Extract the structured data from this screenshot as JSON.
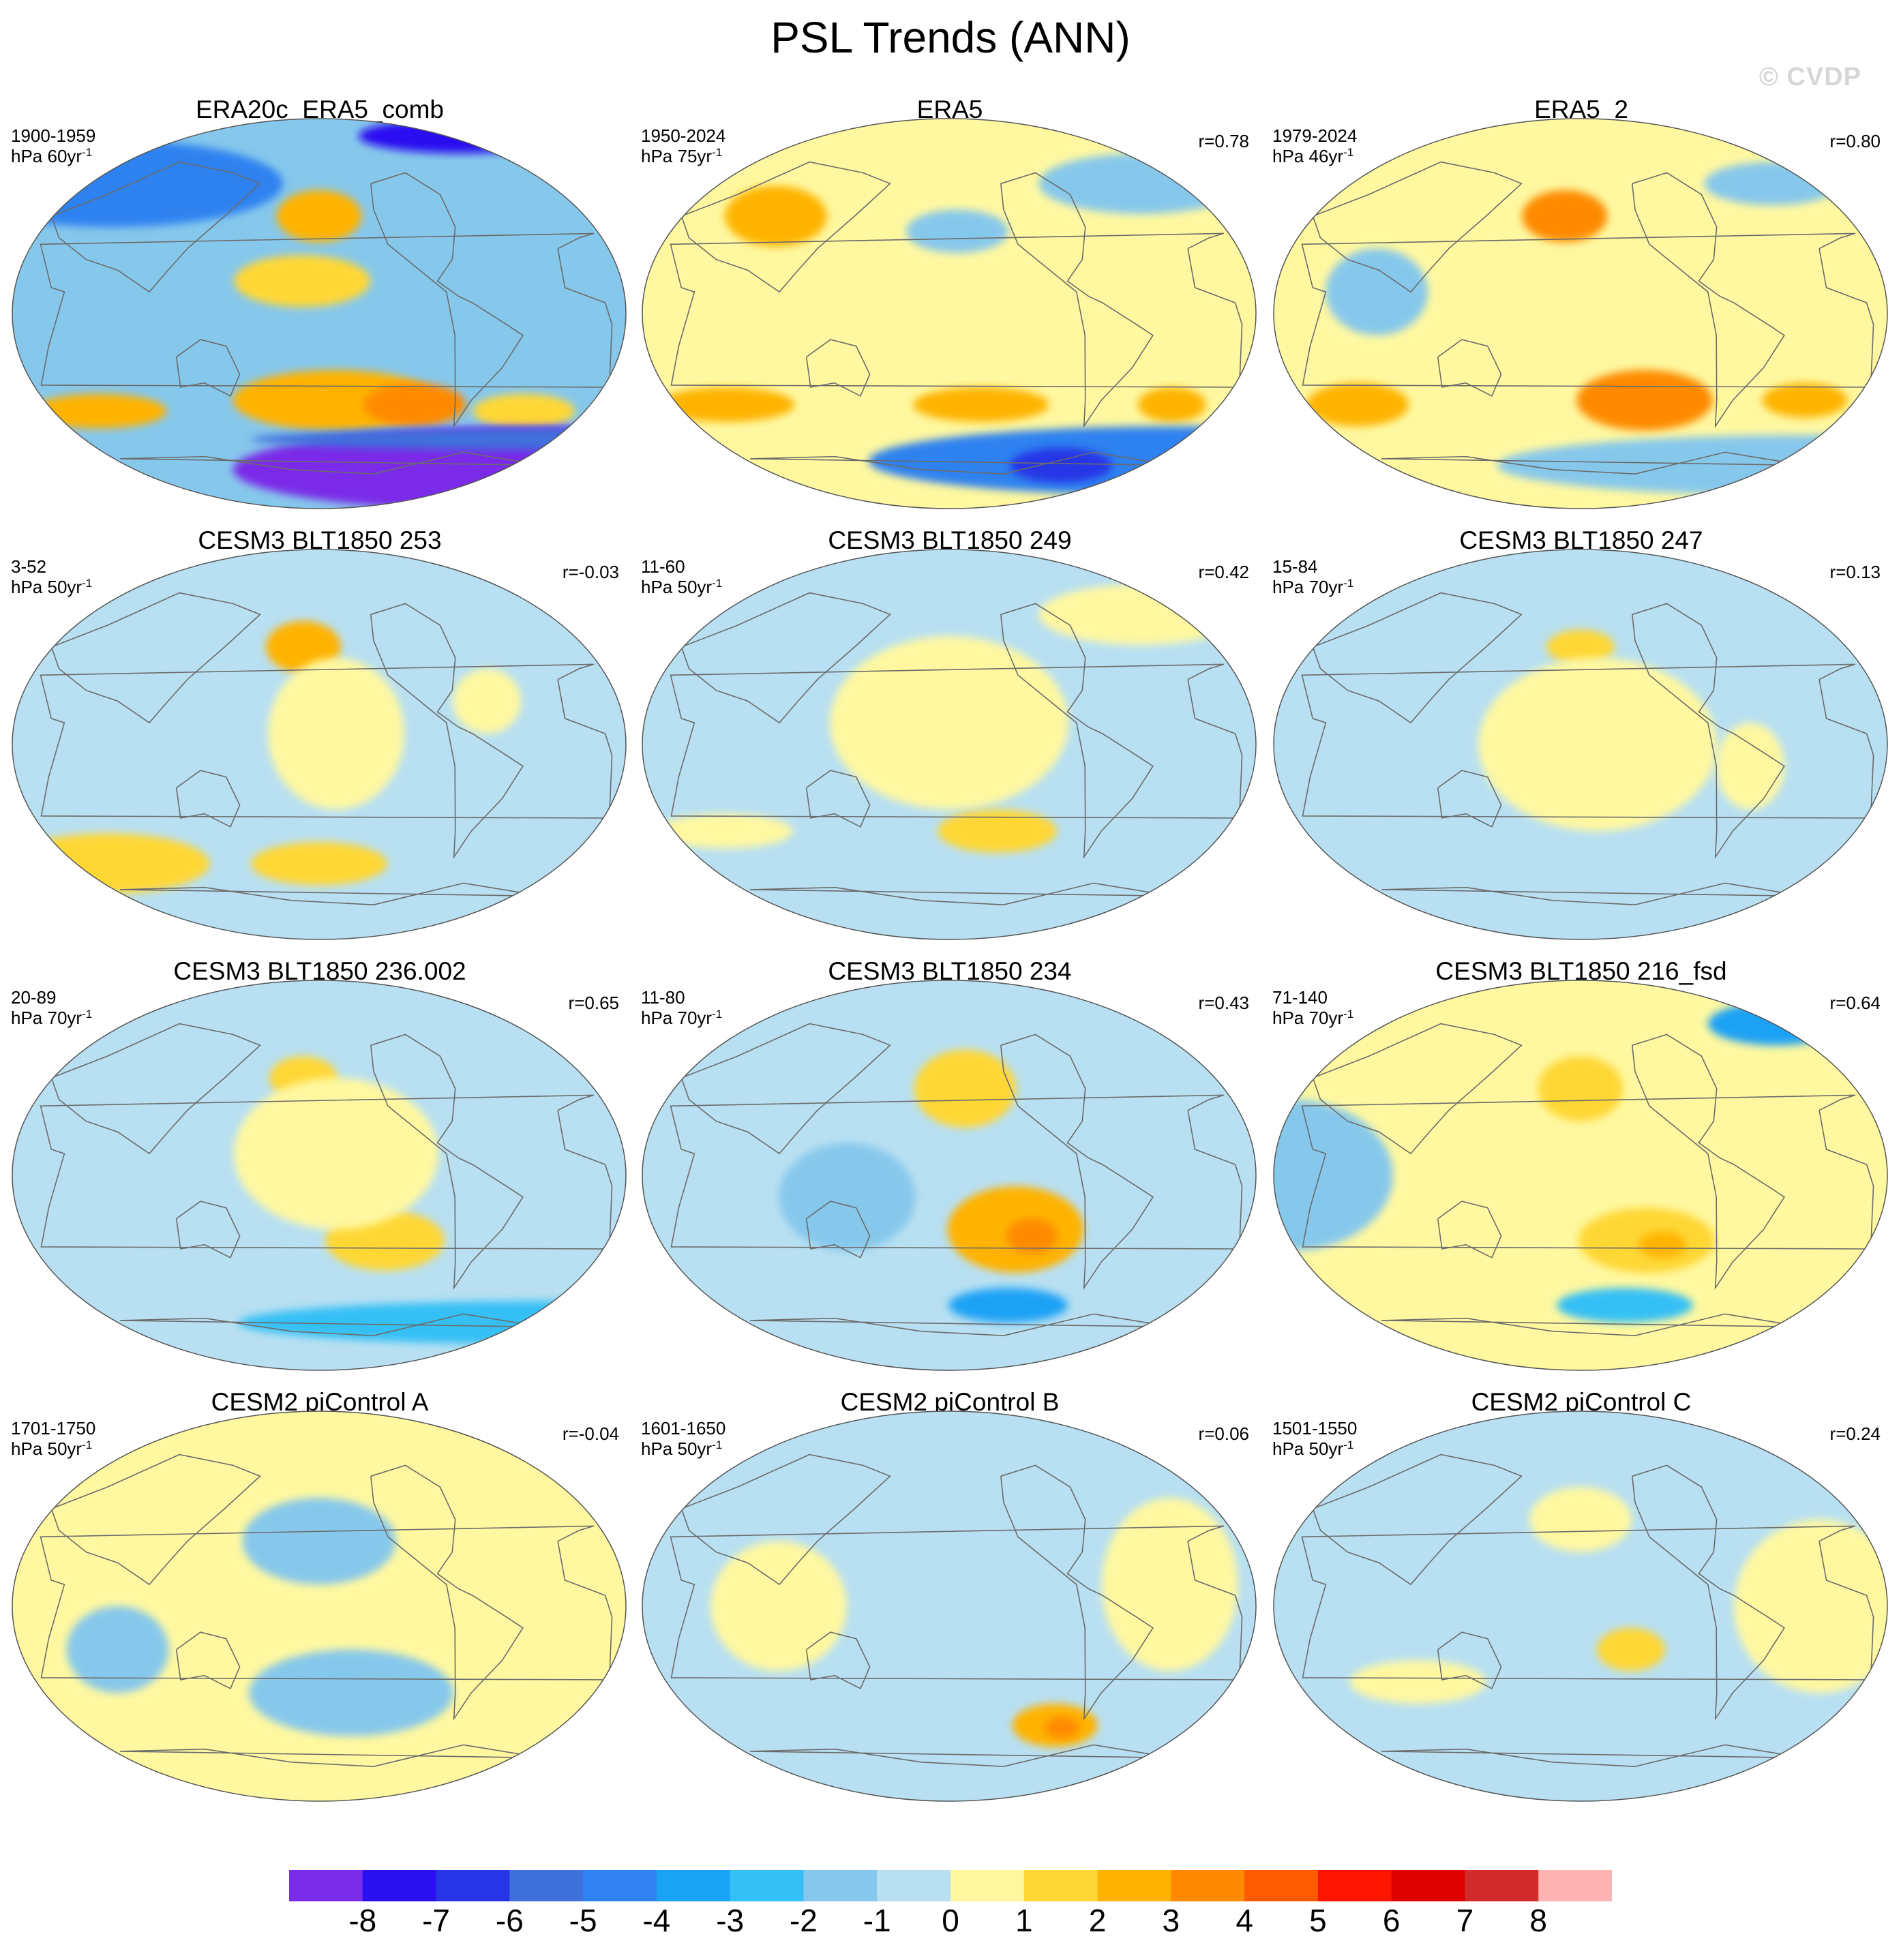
{
  "title": "PSL Trends (ANN)",
  "watermark": "© CVDP",
  "colorbar": {
    "colors": [
      "#7a2ce8",
      "#2a10f0",
      "#2636e6",
      "#3f70dc",
      "#2f82f0",
      "#1aa2f5",
      "#34c0f5",
      "#86c8ec",
      "#b8e0f2",
      "#fff8a0",
      "#ffd736",
      "#ffb300",
      "#ff8a00",
      "#ff5a00",
      "#ff1400",
      "#de0000",
      "#d22b2b",
      "#ffb3b3"
    ],
    "labels": [
      "-8",
      "-7",
      "-6",
      "-5",
      "-4",
      "-3",
      "-2",
      "-1",
      "0",
      "1",
      "2",
      "3",
      "4",
      "5",
      "6",
      "7",
      "8"
    ]
  },
  "panels": [
    {
      "title": "ERA20c_ERA5_comb",
      "period": "1900-1959",
      "units": "hPa 60yr",
      "units_exp": "-1",
      "corr": "",
      "base": "#86c8ec",
      "blobs": [
        {
          "lon": -150,
          "lat": -40,
          "rx": 60,
          "ry": 14,
          "level": 2
        },
        {
          "lon": -100,
          "lat": -42,
          "rx": 30,
          "ry": 10,
          "level": 3
        },
        {
          "lon": -160,
          "lat": 45,
          "rx": 25,
          "ry": 12,
          "level": 2
        },
        {
          "lon": -170,
          "lat": 15,
          "rx": 40,
          "ry": 12,
          "level": 1
        },
        {
          "lon": 60,
          "lat": -45,
          "rx": 40,
          "ry": 8,
          "level": 2
        },
        {
          "lon": -30,
          "lat": -45,
          "rx": 30,
          "ry": 8,
          "level": 1
        },
        {
          "lon": 0,
          "lat": -72,
          "rx": 180,
          "ry": 20,
          "level": -8
        },
        {
          "lon": 0,
          "lat": -58,
          "rx": 180,
          "ry": 5,
          "level": -5
        },
        {
          "lon": 60,
          "lat": 60,
          "rx": 100,
          "ry": 20,
          "level": -4
        },
        {
          "lon": -50,
          "lat": 82,
          "rx": 60,
          "ry": 8,
          "level": -7
        }
      ]
    },
    {
      "title": "ERA5",
      "period": "1950-2024",
      "units": "hPa 75yr",
      "units_exp": "-1",
      "corr": "r=0.78",
      "base": "#fff8a0",
      "blobs": [
        {
          "lon": 90,
          "lat": 45,
          "rx": 30,
          "ry": 14,
          "level": 2
        },
        {
          "lon": -155,
          "lat": 38,
          "rx": 30,
          "ry": 10,
          "level": -1
        },
        {
          "lon": -30,
          "lat": 60,
          "rx": 60,
          "ry": 14,
          "level": -1
        },
        {
          "lon": 60,
          "lat": -42,
          "rx": 40,
          "ry": 8,
          "level": 2
        },
        {
          "lon": -140,
          "lat": -42,
          "rx": 40,
          "ry": 8,
          "level": 2
        },
        {
          "lon": -20,
          "lat": -42,
          "rx": 20,
          "ry": 8,
          "level": 2
        },
        {
          "lon": 0,
          "lat": -68,
          "rx": 180,
          "ry": 16,
          "level": -4
        },
        {
          "lon": -80,
          "lat": -70,
          "rx": 30,
          "ry": 8,
          "level": -6
        }
      ]
    },
    {
      "title": "ERA5_2",
      "period": "1979-2024",
      "units": "hPa 46yr",
      "units_exp": "-1",
      "corr": "r=0.80",
      "base": "#fff8a0",
      "blobs": [
        {
          "lon": -170,
          "lat": 45,
          "rx": 25,
          "ry": 12,
          "level": 3
        },
        {
          "lon": -120,
          "lat": -40,
          "rx": 40,
          "ry": 14,
          "level": 3
        },
        {
          "lon": 60,
          "lat": -42,
          "rx": 30,
          "ry": 10,
          "level": 2
        },
        {
          "lon": -20,
          "lat": -40,
          "rx": 25,
          "ry": 8,
          "level": 2
        },
        {
          "lon": 0,
          "lat": -70,
          "rx": 180,
          "ry": 14,
          "level": -1
        },
        {
          "lon": -30,
          "lat": 60,
          "rx": 40,
          "ry": 10,
          "level": -1
        },
        {
          "lon": 80,
          "lat": 10,
          "rx": 30,
          "ry": 20,
          "level": -1
        }
      ]
    },
    {
      "title": "CESM3 BLT1850 253",
      "period": "3-52",
      "units": "hPa 50yr",
      "units_exp": "-1",
      "corr": "r=-0.03",
      "base": "#b8e0f2",
      "blobs": [
        {
          "lon": -170,
          "lat": 45,
          "rx": 22,
          "ry": 12,
          "level": 2
        },
        {
          "lon": -150,
          "lat": 5,
          "rx": 40,
          "ry": 35,
          "level": 0
        },
        {
          "lon": 60,
          "lat": -55,
          "rx": 60,
          "ry": 14,
          "level": 1
        },
        {
          "lon": -160,
          "lat": -55,
          "rx": 40,
          "ry": 10,
          "level": 1
        },
        {
          "lon": -60,
          "lat": 20,
          "rx": 20,
          "ry": 15,
          "level": 0
        }
      ]
    },
    {
      "title": "CESM3 BLT1850 249",
      "period": "11-60",
      "units": "hPa 50yr",
      "units_exp": "-1",
      "corr": "r=0.42",
      "base": "#b8e0f2",
      "blobs": [
        {
          "lon": -160,
          "lat": 10,
          "rx": 70,
          "ry": 40,
          "level": 0
        },
        {
          "lon": -130,
          "lat": -40,
          "rx": 35,
          "ry": 10,
          "level": 1
        },
        {
          "lon": -30,
          "lat": 60,
          "rx": 60,
          "ry": 14,
          "level": 0
        },
        {
          "lon": 60,
          "lat": -40,
          "rx": 40,
          "ry": 8,
          "level": 0
        }
      ]
    },
    {
      "title": "CESM3 BLT1850 247",
      "period": "15-84",
      "units": "hPa 70yr",
      "units_exp": "-1",
      "corr": "r=0.13",
      "base": "#b8e0f2",
      "blobs": [
        {
          "lon": -160,
          "lat": 45,
          "rx": 20,
          "ry": 8,
          "level": 1
        },
        {
          "lon": -150,
          "lat": 0,
          "rx": 70,
          "ry": 40,
          "level": 0
        },
        {
          "lon": -60,
          "lat": -10,
          "rx": 20,
          "ry": 20,
          "level": 0
        }
      ]
    },
    {
      "title": "CESM3 BLT1850 236.002",
      "period": "20-89",
      "units": "hPa 70yr",
      "units_exp": "-1",
      "corr": "r=0.65",
      "base": "#b8e0f2",
      "blobs": [
        {
          "lon": -170,
          "lat": 45,
          "rx": 20,
          "ry": 10,
          "level": 1
        },
        {
          "lon": -120,
          "lat": -30,
          "rx": 35,
          "ry": 14,
          "level": 1
        },
        {
          "lon": -150,
          "lat": 10,
          "rx": 60,
          "ry": 35,
          "level": 0
        },
        {
          "lon": 0,
          "lat": -68,
          "rx": 180,
          "ry": 10,
          "level": -2
        }
      ]
    },
    {
      "title": "CESM3 BLT1850 234",
      "period": "11-80",
      "units": "hPa 70yr",
      "units_exp": "-1",
      "corr": "r=0.43",
      "base": "#b8e0f2",
      "blobs": [
        {
          "lon": -150,
          "lat": 40,
          "rx": 30,
          "ry": 18,
          "level": 1
        },
        {
          "lon": -120,
          "lat": -25,
          "rx": 40,
          "ry": 20,
          "level": 2
        },
        {
          "lon": -110,
          "lat": -28,
          "rx": 15,
          "ry": 8,
          "level": 3
        },
        {
          "lon": -120,
          "lat": -60,
          "rx": 35,
          "ry": 8,
          "level": -3
        },
        {
          "lon": 140,
          "lat": -10,
          "rx": 40,
          "ry": 25,
          "level": -1
        }
      ]
    },
    {
      "title": "CESM3 BLT1850 216_fsd",
      "period": "71-140",
      "units": "hPa 70yr",
      "units_exp": "-1",
      "corr": "r=0.64",
      "base": "#fff8a0",
      "blobs": [
        {
          "lon": -160,
          "lat": 40,
          "rx": 25,
          "ry": 15,
          "level": 1
        },
        {
          "lon": -120,
          "lat": -30,
          "rx": 40,
          "ry": 15,
          "level": 1
        },
        {
          "lon": -110,
          "lat": -32,
          "rx": 14,
          "ry": 6,
          "level": 2
        },
        {
          "lon": -130,
          "lat": -60,
          "rx": 40,
          "ry": 8,
          "level": -2
        },
        {
          "lon": -20,
          "lat": 70,
          "rx": 40,
          "ry": 10,
          "level": -3
        },
        {
          "lon": 30,
          "lat": 0,
          "rx": 60,
          "ry": 35,
          "level": -1
        }
      ]
    },
    {
      "title": "CESM2 piControl A",
      "period": "1701-1750",
      "units": "hPa 50yr",
      "units_exp": "-1",
      "corr": "r=-0.04",
      "base": "#fff8a0",
      "blobs": [
        {
          "lon": -160,
          "lat": 30,
          "rx": 45,
          "ry": 20,
          "level": -1
        },
        {
          "lon": -140,
          "lat": -40,
          "rx": 60,
          "ry": 20,
          "level": -1
        },
        {
          "lon": 80,
          "lat": -20,
          "rx": 30,
          "ry": 20,
          "level": -1
        }
      ]
    },
    {
      "title": "CESM2 piControl B",
      "period": "1601-1650",
      "units": "hPa 50yr",
      "units_exp": "-1",
      "corr": "r=0.06",
      "base": "#b8e0f2",
      "blobs": [
        {
          "lon": -90,
          "lat": -55,
          "rx": 25,
          "ry": 10,
          "level": 2
        },
        {
          "lon": -85,
          "lat": -56,
          "rx": 10,
          "ry": 5,
          "level": 3
        },
        {
          "lon": -30,
          "lat": 10,
          "rx": 40,
          "ry": 40,
          "level": 0
        },
        {
          "lon": 100,
          "lat": 0,
          "rx": 40,
          "ry": 30,
          "level": 0
        }
      ]
    },
    {
      "title": "CESM2 piControl C",
      "period": "1501-1550",
      "units": "hPa 50yr",
      "units_exp": "-1",
      "corr": "r=0.24",
      "base": "#b8e0f2",
      "blobs": [
        {
          "lon": -160,
          "lat": 40,
          "rx": 30,
          "ry": 15,
          "level": 0
        },
        {
          "lon": -130,
          "lat": -20,
          "rx": 20,
          "ry": 10,
          "level": 1
        },
        {
          "lon": -20,
          "lat": 0,
          "rx": 50,
          "ry": 40,
          "level": 0
        },
        {
          "lon": 100,
          "lat": -35,
          "rx": 40,
          "ry": 10,
          "level": 0
        }
      ]
    }
  ]
}
